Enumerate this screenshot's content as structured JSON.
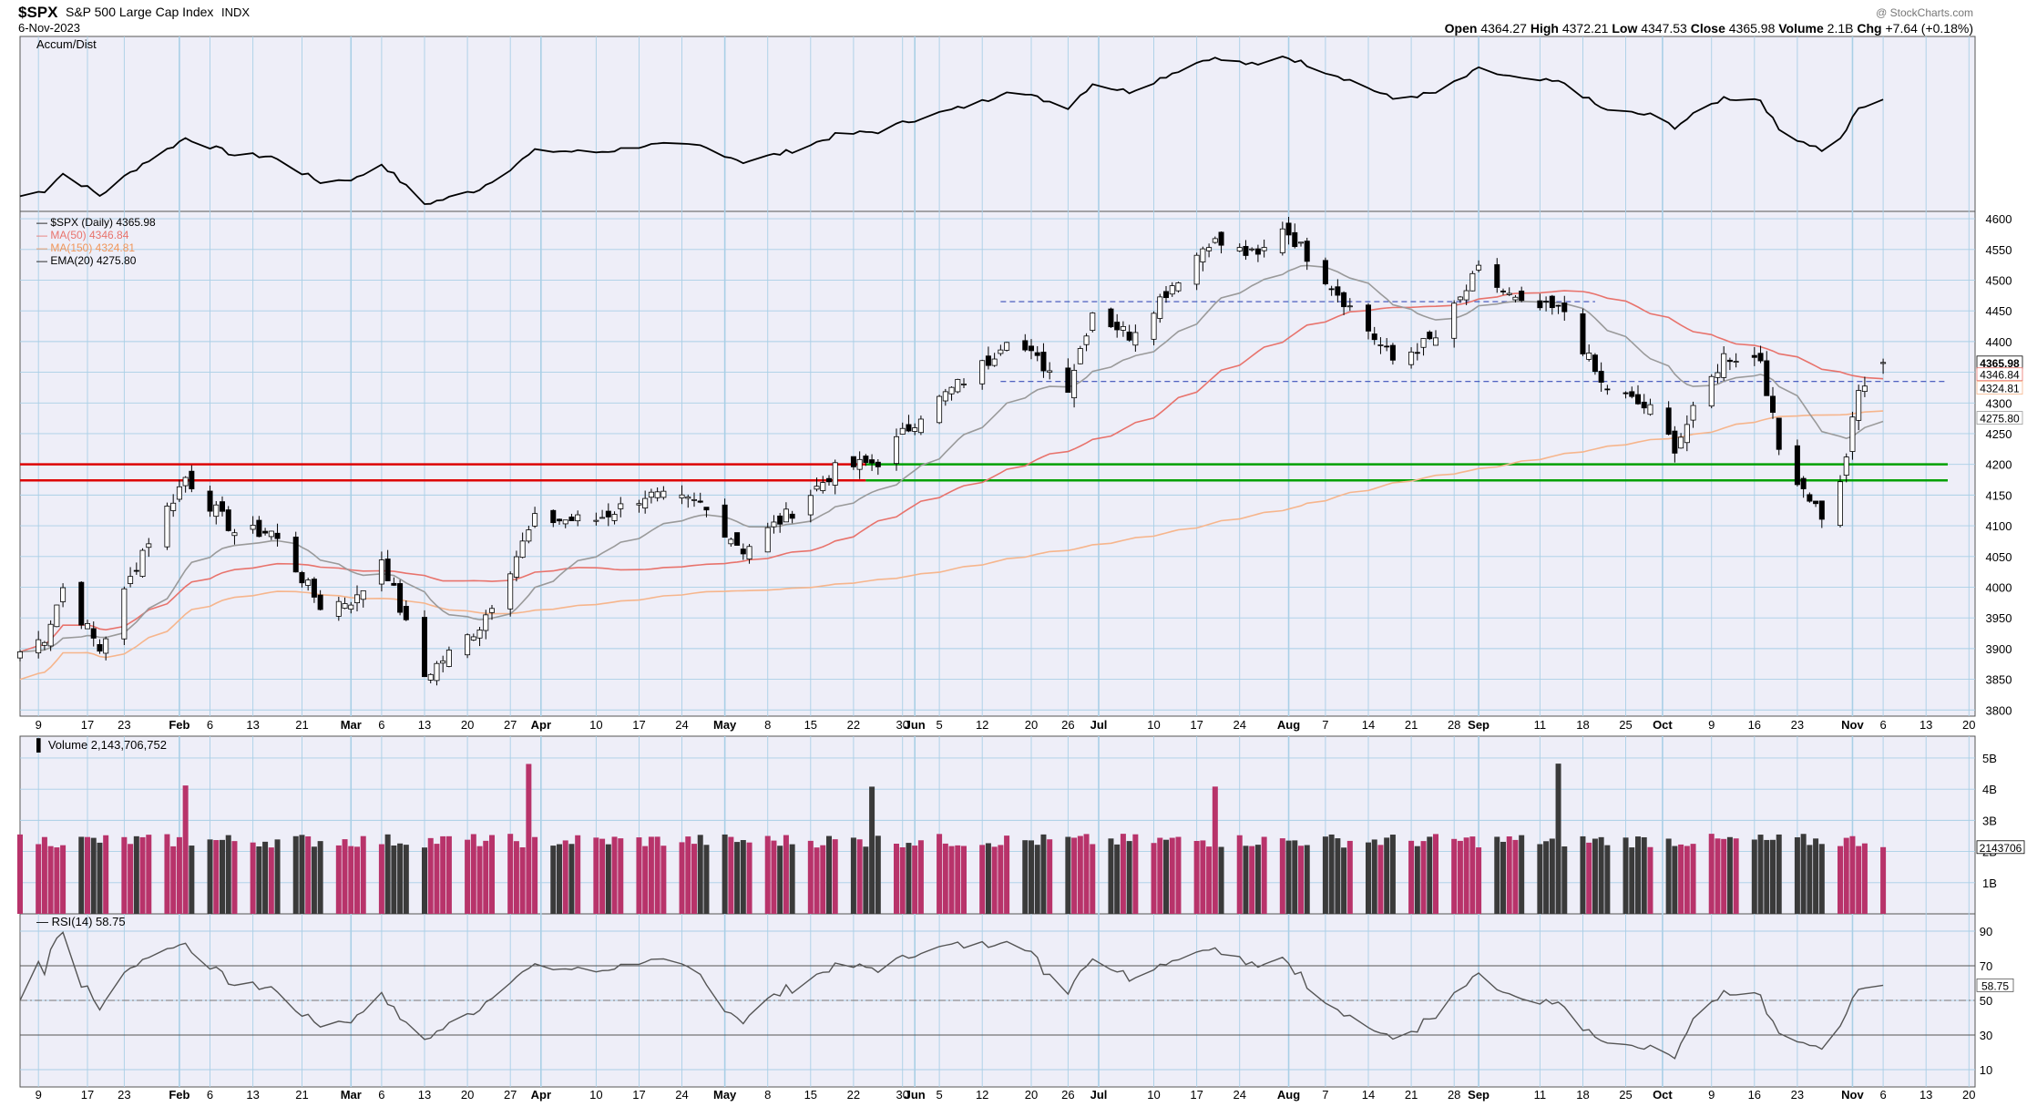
{
  "header": {
    "symbol": "$SPX",
    "name": "S&P 500 Large Cap Index",
    "exchange": "INDX",
    "date": "6-Nov-2023",
    "quote": [
      {
        "label": "Open",
        "value": "4364.27"
      },
      {
        "label": "High",
        "value": "4372.21"
      },
      {
        "label": "Low",
        "value": "4347.53"
      },
      {
        "label": "Close",
        "value": "4365.98"
      },
      {
        "label": "Volume",
        "value": "2.1B"
      },
      {
        "label": "Chg",
        "value": "+7.64 (+0.18%)"
      }
    ],
    "watermark": "@ StockCharts.com"
  },
  "colors": {
    "panel_bg": "#eeeef8",
    "grid": "#a9cfe6",
    "up_candle": "#ffffff",
    "down_candle": "#000000",
    "ma50": "#e8736c",
    "ma150": "#f6b58c",
    "ema20": "#9a9a9a",
    "resistance": "#dd0000",
    "support": "#00a000",
    "dashed_level": "#3a4fb8",
    "volume_up": "#b8336a",
    "volume_down": "#3a3a3a"
  },
  "chart_data": {
    "type": "candlestick",
    "title": "$SPX S&P 500 Large Cap Index INDX",
    "date_range": [
      "2023-01-06",
      "2023-11-06"
    ],
    "x_tick_labels": [
      "9",
      "17",
      "23",
      "Feb",
      "6",
      "13",
      "21",
      "Mar",
      "6",
      "13",
      "20",
      "27",
      "Apr",
      "10",
      "17",
      "24",
      "May",
      "8",
      "15",
      "22",
      "30",
      "Jun",
      "5",
      "12",
      "20",
      "26",
      "Jul",
      "10",
      "17",
      "24",
      "Aug",
      "7",
      "14",
      "21",
      "28",
      "Sep",
      "11",
      "18",
      "25",
      "Oct",
      "9",
      "16",
      "23",
      "Nov",
      "6",
      "13",
      "20"
    ],
    "panels": {
      "accum_dist": {
        "label": "Accum/Dist"
      },
      "price": {
        "legend": [
          {
            "name": "$SPX (Daily)",
            "value": "4365.98"
          },
          {
            "name": "MA(50)",
            "value": "4346.84"
          },
          {
            "name": "MA(150)",
            "value": "4324.81"
          },
          {
            "name": "EMA(20)",
            "value": "4275.80"
          }
        ],
        "y_ticks": [
          3800,
          3850,
          3900,
          3950,
          4000,
          4050,
          4100,
          4150,
          4200,
          4250,
          4300,
          4350,
          4400,
          4450,
          4500,
          4550,
          4600
        ],
        "ylim": [
          3790,
          4612
        ],
        "right_labels": [
          "4365.98",
          "4346.84",
          "4324.81",
          "4275.80"
        ],
        "horizontal_levels": [
          {
            "value": 4200,
            "style": "red",
            "range": [
              "2023-01-06",
              "2023-05-24"
            ]
          },
          {
            "value": 4174,
            "style": "red",
            "range": [
              "2023-01-06",
              "2023-05-24"
            ]
          },
          {
            "value": 4200,
            "style": "green",
            "range": [
              "2023-05-24",
              "2023-11-20"
            ]
          },
          {
            "value": 4174,
            "style": "green",
            "range": [
              "2023-05-24",
              "2023-11-20"
            ]
          },
          {
            "value": 4465,
            "style": "dashed",
            "range": [
              "2023-06-15",
              "2023-09-20"
            ]
          },
          {
            "value": 4335,
            "style": "dashed",
            "range": [
              "2023-06-15",
              "2023-11-20"
            ]
          }
        ],
        "close_path": [
          [
            "2023-01-06",
            3895
          ],
          [
            "2023-01-10",
            3919
          ],
          [
            "2023-01-13",
            3999
          ],
          [
            "2023-01-19",
            3898
          ],
          [
            "2023-01-26",
            4060
          ],
          [
            "2023-02-02",
            4179
          ],
          [
            "2023-02-10",
            4090
          ],
          [
            "2023-02-16",
            4090
          ],
          [
            "2023-02-24",
            3970
          ],
          [
            "2023-03-02",
            3981
          ],
          [
            "2023-03-06",
            4048
          ],
          [
            "2023-03-13",
            3855
          ],
          [
            "2023-03-22",
            3937
          ],
          [
            "2023-03-31",
            4109
          ],
          [
            "2023-04-10",
            4110
          ],
          [
            "2023-04-18",
            4150
          ],
          [
            "2023-04-27",
            4135
          ],
          [
            "2023-05-04",
            4061
          ],
          [
            "2023-05-12",
            4124
          ],
          [
            "2023-05-19",
            4191
          ],
          [
            "2023-05-26",
            4205
          ],
          [
            "2023-06-02",
            4282
          ],
          [
            "2023-06-13",
            4369
          ],
          [
            "2023-06-16",
            4410
          ],
          [
            "2023-06-26",
            4328
          ],
          [
            "2023-06-30",
            4450
          ],
          [
            "2023-07-06",
            4411
          ],
          [
            "2023-07-14",
            4505
          ],
          [
            "2023-07-19",
            4565
          ],
          [
            "2023-07-27",
            4537
          ],
          [
            "2023-07-31",
            4589
          ],
          [
            "2023-08-10",
            4468
          ],
          [
            "2023-08-18",
            4369
          ],
          [
            "2023-08-25",
            4406
          ],
          [
            "2023-09-01",
            4515
          ],
          [
            "2023-09-08",
            4457
          ],
          [
            "2023-09-15",
            4450
          ],
          [
            "2023-09-21",
            4330
          ],
          [
            "2023-09-29",
            4288
          ],
          [
            "2023-10-03",
            4229
          ],
          [
            "2023-10-11",
            4376
          ],
          [
            "2023-10-17",
            4373
          ],
          [
            "2023-10-20",
            4224
          ],
          [
            "2023-10-27",
            4117
          ],
          [
            "2023-10-30",
            4166
          ],
          [
            "2023-11-02",
            4318
          ],
          [
            "2023-11-06",
            4365.98
          ]
        ]
      },
      "volume": {
        "label": "Volume",
        "value": "2,143,706,752",
        "y_ticks": [
          "1B",
          "2B",
          "3B",
          "4B",
          "5B"
        ],
        "right_label": "2143706"
      },
      "rsi": {
        "label": "RSI(14)",
        "value": "58.75",
        "y_ticks": [
          10,
          30,
          50,
          70,
          90
        ],
        "overbought": 70,
        "oversold": 30,
        "mid": 50
      }
    }
  }
}
